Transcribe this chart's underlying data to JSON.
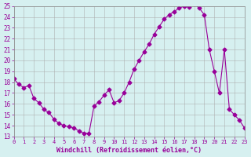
{
  "x": [
    0,
    0.5,
    1,
    1.5,
    2,
    2.5,
    3,
    3.5,
    4,
    4.5,
    5,
    5.5,
    6,
    6.5,
    7,
    7.5,
    8,
    8.5,
    9,
    9.5,
    10,
    10.5,
    11,
    11.5,
    12,
    12.5,
    13,
    13.5,
    14,
    14.5,
    15,
    15.5,
    16,
    16.5,
    17,
    17.5,
    18,
    18.5,
    19,
    19.5,
    20,
    20.5,
    21,
    21.5,
    22,
    22.5,
    23
  ],
  "y": [
    18.3,
    17.8,
    17.5,
    17.7,
    16.5,
    16.1,
    15.5,
    15.2,
    14.6,
    14.2,
    14.0,
    13.9,
    13.8,
    13.5,
    13.3,
    13.3,
    15.8,
    16.2,
    16.8,
    17.3,
    16.1,
    16.3,
    17.0,
    18.0,
    19.2,
    20.0,
    20.8,
    21.5,
    22.4,
    23.1,
    23.8,
    24.2,
    24.5,
    24.8,
    25.0,
    24.9,
    25.2,
    24.8,
    24.2,
    21.0,
    19.0,
    17.0,
    21.0,
    15.5,
    15.0,
    14.5,
    13.8
  ],
  "line_color": "#990099",
  "marker_color": "#990099",
  "bg_color": "#d6f0f0",
  "grid_color": "#aaaaaa",
  "axis_color": "#990099",
  "xlabel": "Windchill (Refroidissement éolien,°C)",
  "ylim": [
    13,
    25
  ],
  "xlim": [
    0,
    23
  ],
  "yticks": [
    13,
    14,
    15,
    16,
    17,
    18,
    19,
    20,
    21,
    22,
    23,
    24,
    25
  ],
  "xticks": [
    0,
    1,
    2,
    3,
    4,
    5,
    6,
    7,
    8,
    9,
    10,
    11,
    12,
    13,
    14,
    15,
    16,
    17,
    18,
    19,
    20,
    21,
    22,
    23
  ]
}
